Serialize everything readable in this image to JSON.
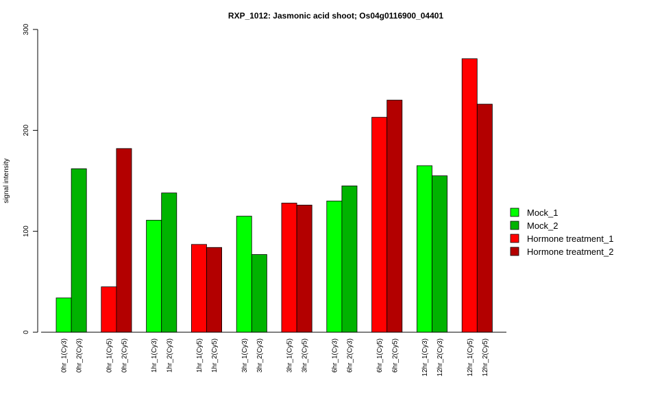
{
  "chart_data": {
    "type": "bar",
    "title": "RXP_1012: Jasmonic acid shoot; Os04g0116900_04401",
    "xlabel": "",
    "ylabel": "signal intensity",
    "ylim": [
      0,
      300
    ],
    "yticks": [
      0,
      100,
      200,
      300
    ],
    "grid": false,
    "legend_position": "right",
    "categories": [
      "0hr_1(Cy3)",
      "0hr_2(Cy3)",
      "0hr_1(Cy5)",
      "0hr_2(Cy5)",
      "1hr_1(Cy3)",
      "1hr_2(Cy3)",
      "1hr_1(Cy5)",
      "1hr_2(Cy5)",
      "3hr_1(Cy3)",
      "3hr_2(Cy3)",
      "3hr_1(Cy5)",
      "3hr_2(Cy5)",
      "6hr_1(Cy3)",
      "6hr_2(Cy3)",
      "6hr_1(Cy5)",
      "6hr_2(Cy5)",
      "12hr_1(Cy3)",
      "12hr_2(Cy3)",
      "12hr_1(Cy5)",
      "12hr_2(Cy5)"
    ],
    "values": [
      34,
      162,
      45,
      182,
      111,
      138,
      87,
      84,
      115,
      77,
      128,
      126,
      130,
      145,
      213,
      230,
      165,
      155,
      271,
      226
    ],
    "series_index": [
      0,
      1,
      2,
      3,
      0,
      1,
      2,
      3,
      0,
      1,
      2,
      3,
      0,
      1,
      2,
      3,
      0,
      1,
      2,
      3
    ],
    "legend": [
      {
        "name": "Mock_1",
        "color": "#00ff00"
      },
      {
        "name": "Mock_2",
        "color": "#00b300"
      },
      {
        "name": "Hormone treatment_1",
        "color": "#ff0000"
      },
      {
        "name": "Hormone treatment_2",
        "color": "#b30000"
      }
    ]
  }
}
